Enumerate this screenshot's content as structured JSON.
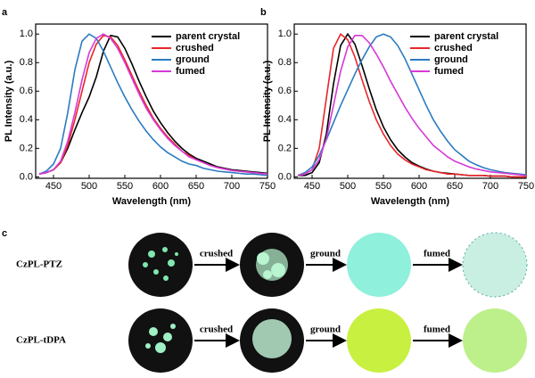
{
  "chart_data": [
    {
      "type": "line",
      "label": "a",
      "x_label": "Wavelength (nm)",
      "y_label": "PL Intensity (a.u.)",
      "x": [
        430,
        440,
        450,
        460,
        470,
        480,
        490,
        500,
        510,
        520,
        530,
        540,
        550,
        560,
        570,
        580,
        590,
        600,
        610,
        620,
        630,
        640,
        650,
        660,
        670,
        680,
        690,
        700,
        710,
        720,
        730,
        740,
        750
      ],
      "xlim": [
        425,
        750
      ],
      "xticks": [
        450,
        500,
        550,
        600,
        650,
        700,
        750
      ],
      "ylim": [
        -0.01,
        1.07
      ],
      "yticks": [
        {
          "value": 0,
          "label": "0.0"
        },
        0.2,
        0.4,
        0.6,
        0.8,
        {
          "value": 1,
          "label": "1.0"
        }
      ],
      "legend": "upper right",
      "series": [
        {
          "name": "parent crystal",
          "color": "#000000",
          "values": [
            0.02,
            0.03,
            0.05,
            0.1,
            0.2,
            0.33,
            0.45,
            0.56,
            0.7,
            0.88,
            0.99,
            0.98,
            0.9,
            0.79,
            0.67,
            0.56,
            0.46,
            0.38,
            0.31,
            0.25,
            0.2,
            0.16,
            0.13,
            0.11,
            0.09,
            0.07,
            0.06,
            0.05,
            0.045,
            0.04,
            0.035,
            0.03,
            0.025
          ]
        },
        {
          "name": "crushed",
          "color": "#e8262b",
          "values": [
            0.02,
            0.03,
            0.05,
            0.1,
            0.22,
            0.4,
            0.6,
            0.8,
            0.93,
            0.99,
            0.98,
            0.92,
            0.82,
            0.71,
            0.6,
            0.5,
            0.41,
            0.34,
            0.28,
            0.23,
            0.18,
            0.15,
            0.12,
            0.1,
            0.08,
            0.065,
            0.055,
            0.045,
            0.04,
            0.035,
            0.03,
            0.025,
            0.02
          ]
        },
        {
          "name": "ground",
          "color": "#2b7bc1",
          "values": [
            0.02,
            0.04,
            0.09,
            0.2,
            0.45,
            0.75,
            0.95,
            1.0,
            0.97,
            0.88,
            0.77,
            0.66,
            0.56,
            0.47,
            0.39,
            0.32,
            0.26,
            0.21,
            0.17,
            0.14,
            0.11,
            0.09,
            0.08,
            0.06,
            0.05,
            0.04,
            0.035,
            0.03,
            0.025,
            0.02,
            0.02,
            0.015,
            0.01
          ]
        },
        {
          "name": "fumed",
          "color": "#d63ad6",
          "values": [
            0.02,
            0.03,
            0.05,
            0.11,
            0.25,
            0.45,
            0.68,
            0.87,
            0.97,
            1.0,
            0.97,
            0.9,
            0.8,
            0.69,
            0.58,
            0.48,
            0.4,
            0.33,
            0.27,
            0.22,
            0.18,
            0.14,
            0.12,
            0.1,
            0.08,
            0.065,
            0.055,
            0.045,
            0.04,
            0.035,
            0.03,
            0.025,
            0.02
          ]
        }
      ]
    },
    {
      "type": "line",
      "label": "b",
      "x_label": "Wavelength (nm)",
      "y_label": "PL Intensity (a.u.)",
      "x": [
        430,
        440,
        450,
        460,
        470,
        480,
        490,
        500,
        510,
        520,
        530,
        540,
        550,
        560,
        570,
        580,
        590,
        600,
        610,
        620,
        630,
        640,
        650,
        660,
        670,
        680,
        690,
        700,
        710,
        720,
        730,
        740,
        750
      ],
      "xlim": [
        425,
        750
      ],
      "xticks": [
        450,
        500,
        550,
        600,
        650,
        700,
        750
      ],
      "ylim": [
        -0.01,
        1.07
      ],
      "yticks": [
        {
          "value": 0,
          "label": "0.0"
        },
        0.2,
        0.4,
        0.6,
        0.8,
        {
          "value": 1,
          "label": "1.0"
        }
      ],
      "legend": "upper right",
      "series": [
        {
          "name": "parent crystal",
          "color": "#000000",
          "values": [
            0.01,
            0.01,
            0.03,
            0.1,
            0.3,
            0.65,
            0.92,
            1.0,
            0.93,
            0.78,
            0.62,
            0.47,
            0.35,
            0.26,
            0.19,
            0.14,
            0.1,
            0.075,
            0.055,
            0.04,
            0.03,
            0.025,
            0.02,
            0.015,
            0.01,
            0.01,
            0.01,
            0.005,
            0.005,
            0.005,
            0,
            0,
            0
          ]
        },
        {
          "name": "crushed",
          "color": "#e8262b",
          "values": [
            0.01,
            0.02,
            0.05,
            0.2,
            0.55,
            0.9,
            1.0,
            0.96,
            0.84,
            0.68,
            0.53,
            0.4,
            0.3,
            0.22,
            0.16,
            0.12,
            0.09,
            0.07,
            0.05,
            0.04,
            0.03,
            0.02,
            0.02,
            0.015,
            0.01,
            0.01,
            0.01,
            0.005,
            0.005,
            0.005,
            0,
            0,
            0
          ]
        },
        {
          "name": "ground",
          "color": "#2b7bc1",
          "values": [
            0.01,
            0.03,
            0.07,
            0.15,
            0.26,
            0.38,
            0.5,
            0.61,
            0.72,
            0.82,
            0.91,
            0.98,
            1.0,
            0.98,
            0.92,
            0.83,
            0.72,
            0.61,
            0.5,
            0.4,
            0.32,
            0.25,
            0.19,
            0.15,
            0.11,
            0.085,
            0.065,
            0.05,
            0.04,
            0.03,
            0.025,
            0.02,
            0.015
          ]
        },
        {
          "name": "fumed",
          "color": "#d63ad6",
          "values": [
            0.01,
            0.02,
            0.05,
            0.12,
            0.27,
            0.5,
            0.74,
            0.91,
            0.99,
            0.99,
            0.94,
            0.86,
            0.77,
            0.67,
            0.58,
            0.49,
            0.41,
            0.34,
            0.28,
            0.22,
            0.18,
            0.14,
            0.11,
            0.09,
            0.07,
            0.055,
            0.045,
            0.035,
            0.03,
            0.025,
            0.02,
            0.015,
            0.01
          ]
        }
      ]
    }
  ],
  "panel_c": {
    "label": "c",
    "rows": [
      {
        "name": "CzPL-PTZ",
        "steps": [
          "crushed",
          "ground",
          "fumed"
        ]
      },
      {
        "name": "CzPL-tDPA",
        "steps": [
          "crushed",
          "ground",
          "fumed"
        ]
      }
    ]
  }
}
